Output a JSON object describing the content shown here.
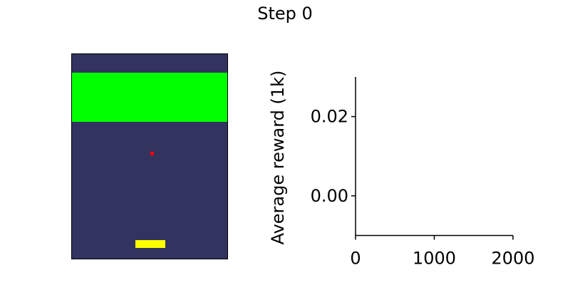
{
  "title": "Step 0",
  "game": {
    "background_color": "#33335f",
    "brick_color": "#00ff00",
    "ball_color": "#ff0000",
    "paddle_color": "#ffff00"
  },
  "chart_data": {
    "type": "line",
    "title": "",
    "xlabel": "",
    "ylabel": "Average reward (1k)",
    "xlim": [
      0,
      2000
    ],
    "ylim": [
      -0.01,
      0.03
    ],
    "xticks": [
      "0",
      "1000",
      "2000"
    ],
    "yticks": [
      "0.00",
      "0.02"
    ],
    "series": [
      {
        "x": [],
        "y": []
      }
    ],
    "grid": false,
    "legend": "none"
  }
}
